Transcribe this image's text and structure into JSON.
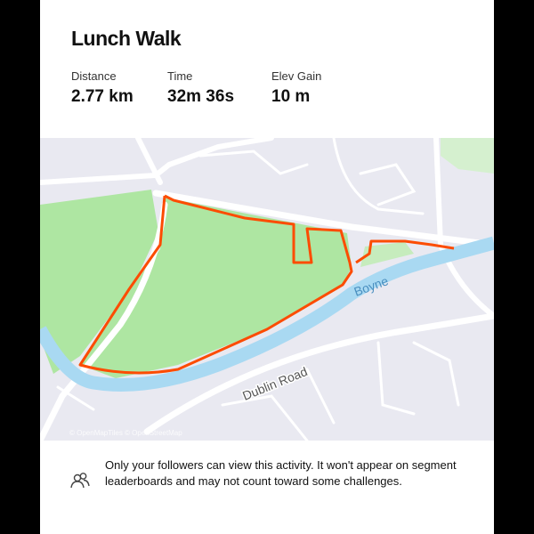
{
  "activity": {
    "title": "Lunch Walk"
  },
  "stats": [
    {
      "label": "Distance",
      "value": "2.77 km"
    },
    {
      "label": "Time",
      "value": "32m 36s"
    },
    {
      "label": "Elev Gain",
      "value": "10 m"
    }
  ],
  "map": {
    "labels": {
      "river": "Boyne",
      "road": "Dublin Road"
    },
    "attribution": "© OpenMapTiles © OpenStreetMap",
    "colors": {
      "route": "#fc4c02",
      "park": "#aee6a2",
      "water": "#a9d9f2",
      "land": "#e9e9f1",
      "road": "#ffffff"
    }
  },
  "privacy": {
    "icon": "followers-icon",
    "text": "Only your followers can view this activity. It won't appear on segment leaderboards and may not count toward some challenges."
  }
}
